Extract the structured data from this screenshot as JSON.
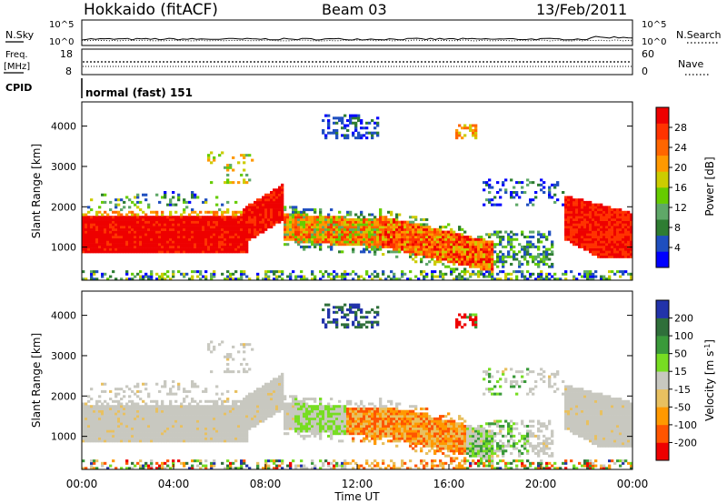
{
  "header": {
    "station": "Hokkaido (fitACF)",
    "beam": "Beam 03",
    "date": "13/Feb/2011"
  },
  "noise_panel": {
    "left_label": "N.Sky",
    "left_ticks": [
      "10^5",
      "10^0"
    ],
    "right_ticks": [
      "10^5",
      "10^0"
    ],
    "right_label": "N.Search"
  },
  "freq_panel": {
    "left_label_1": "Freq.",
    "left_label_2": "[MHz]",
    "left_ticks": [
      "18",
      "8"
    ],
    "right_ticks": [
      "60",
      "0"
    ],
    "right_label": "Nave"
  },
  "cpid_panel": {
    "label": "CPID",
    "mode_text": "normal (fast) 151"
  },
  "colors": {
    "power": [
      "#0000ff",
      "#1f4fbf",
      "#2e7d32",
      "#5fa868",
      "#66cc00",
      "#cccc00",
      "#ff9900",
      "#ff6600",
      "#ff3300",
      "#ee0000"
    ],
    "velocity": [
      "#2233aa",
      "#2f6f3a",
      "#3a9a3a",
      "#77dd22",
      "#c8c8c0",
      "#e8c060",
      "#ff9900",
      "#ff5500",
      "#ee0000"
    ]
  },
  "chart_data": [
    {
      "type": "heatmap",
      "name": "power",
      "ylabel": "Slant Range [km]",
      "ylim": [
        180,
        4600
      ],
      "xlim_hours": [
        0,
        24
      ],
      "yticks": [
        "1000",
        "2000",
        "3000",
        "4000"
      ],
      "colorbar": {
        "label": "Power [dB]",
        "ticks": [
          "28",
          "24",
          "20",
          "16",
          "12",
          "8",
          "4"
        ]
      },
      "features": [
        {
          "from_h": 0.0,
          "to_h": 7.2,
          "range_km": [
            850,
            1750
          ],
          "level": "red"
        },
        {
          "from_h": 7.0,
          "to_h": 8.8,
          "range_km": [
            1200,
            2300
          ],
          "level": "red"
        },
        {
          "from_h": 9.0,
          "to_h": 13.0,
          "range_km": [
            1000,
            1800
          ],
          "level": "mixed"
        },
        {
          "from_h": 13.0,
          "to_h": 18.0,
          "range_km": [
            500,
            1500
          ],
          "level": "orange"
        },
        {
          "from_h": 21.0,
          "to_h": 24.0,
          "range_km": [
            800,
            1900
          ],
          "level": "red"
        }
      ]
    },
    {
      "type": "heatmap",
      "name": "velocity",
      "ylabel": "Slant Range [km]",
      "ylim": [
        180,
        4600
      ],
      "xlim_hours": [
        0,
        24
      ],
      "yticks": [
        "1000",
        "2000",
        "3000",
        "4000"
      ],
      "xticks": [
        "00:00",
        "04:00",
        "08:00",
        "12:00",
        "16:00",
        "20:00",
        "00:00"
      ],
      "xlabel": "Time UT",
      "colorbar": {
        "label": "Velocity [m s",
        "label_sup": "-1",
        "label_end": "]",
        "ticks": [
          "200",
          "100",
          "50",
          "15",
          "-15",
          "-50",
          "-100",
          "-200"
        ]
      }
    }
  ]
}
